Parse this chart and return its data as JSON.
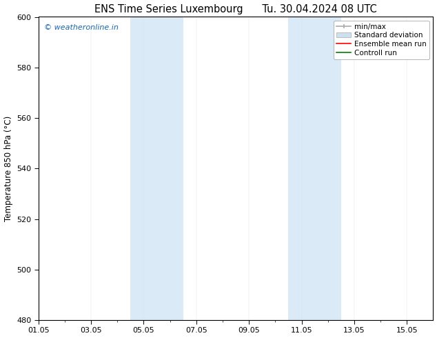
{
  "title": "ENS Time Series Luxembourg      Tu. 30.04.2024 08 UTC",
  "ylabel": "Temperature 850 hPa (°C)",
  "ylim": [
    480,
    600
  ],
  "yticks": [
    480,
    500,
    520,
    540,
    560,
    580,
    600
  ],
  "xlim": [
    0,
    15
  ],
  "xtick_major_positions": [
    0,
    2,
    4,
    6,
    8,
    10,
    12,
    14
  ],
  "xtick_major_labels": [
    "01.05",
    "03.05",
    "05.05",
    "07.05",
    "09.05",
    "11.05",
    "13.05",
    "15.05"
  ],
  "xtick_minor_positions": [
    1,
    3,
    5,
    7,
    9,
    11,
    13
  ],
  "shaded_bands": [
    {
      "x_start": 3.5,
      "x_end": 4.5,
      "color": "#daeaf6"
    },
    {
      "x_start": 4.5,
      "x_end": 5.5,
      "color": "#daeaf6"
    },
    {
      "x_start": 9.5,
      "x_end": 10.5,
      "color": "#daeaf6"
    },
    {
      "x_start": 10.5,
      "x_end": 11.5,
      "color": "#daeaf6"
    }
  ],
  "watermark_text": "© weatheronline.in",
  "watermark_color": "#1565C0",
  "legend_items": [
    {
      "label": "min/max",
      "color": "#aaaaaa",
      "lw": 1.2,
      "style": "line_with_caps"
    },
    {
      "label": "Standard deviation",
      "color": "#cce0f0",
      "lw": 6,
      "style": "thick"
    },
    {
      "label": "Ensemble mean run",
      "color": "#ff0000",
      "lw": 1.2,
      "style": "line"
    },
    {
      "label": "Controll run",
      "color": "#008000",
      "lw": 1.2,
      "style": "line"
    }
  ],
  "bg_color": "#ffffff",
  "plot_bg_color": "#ffffff",
  "border_color": "#000000",
  "font_size_title": 10.5,
  "font_size_axis": 8.5,
  "font_size_tick": 8,
  "font_size_watermark": 8,
  "font_size_legend": 7.5
}
